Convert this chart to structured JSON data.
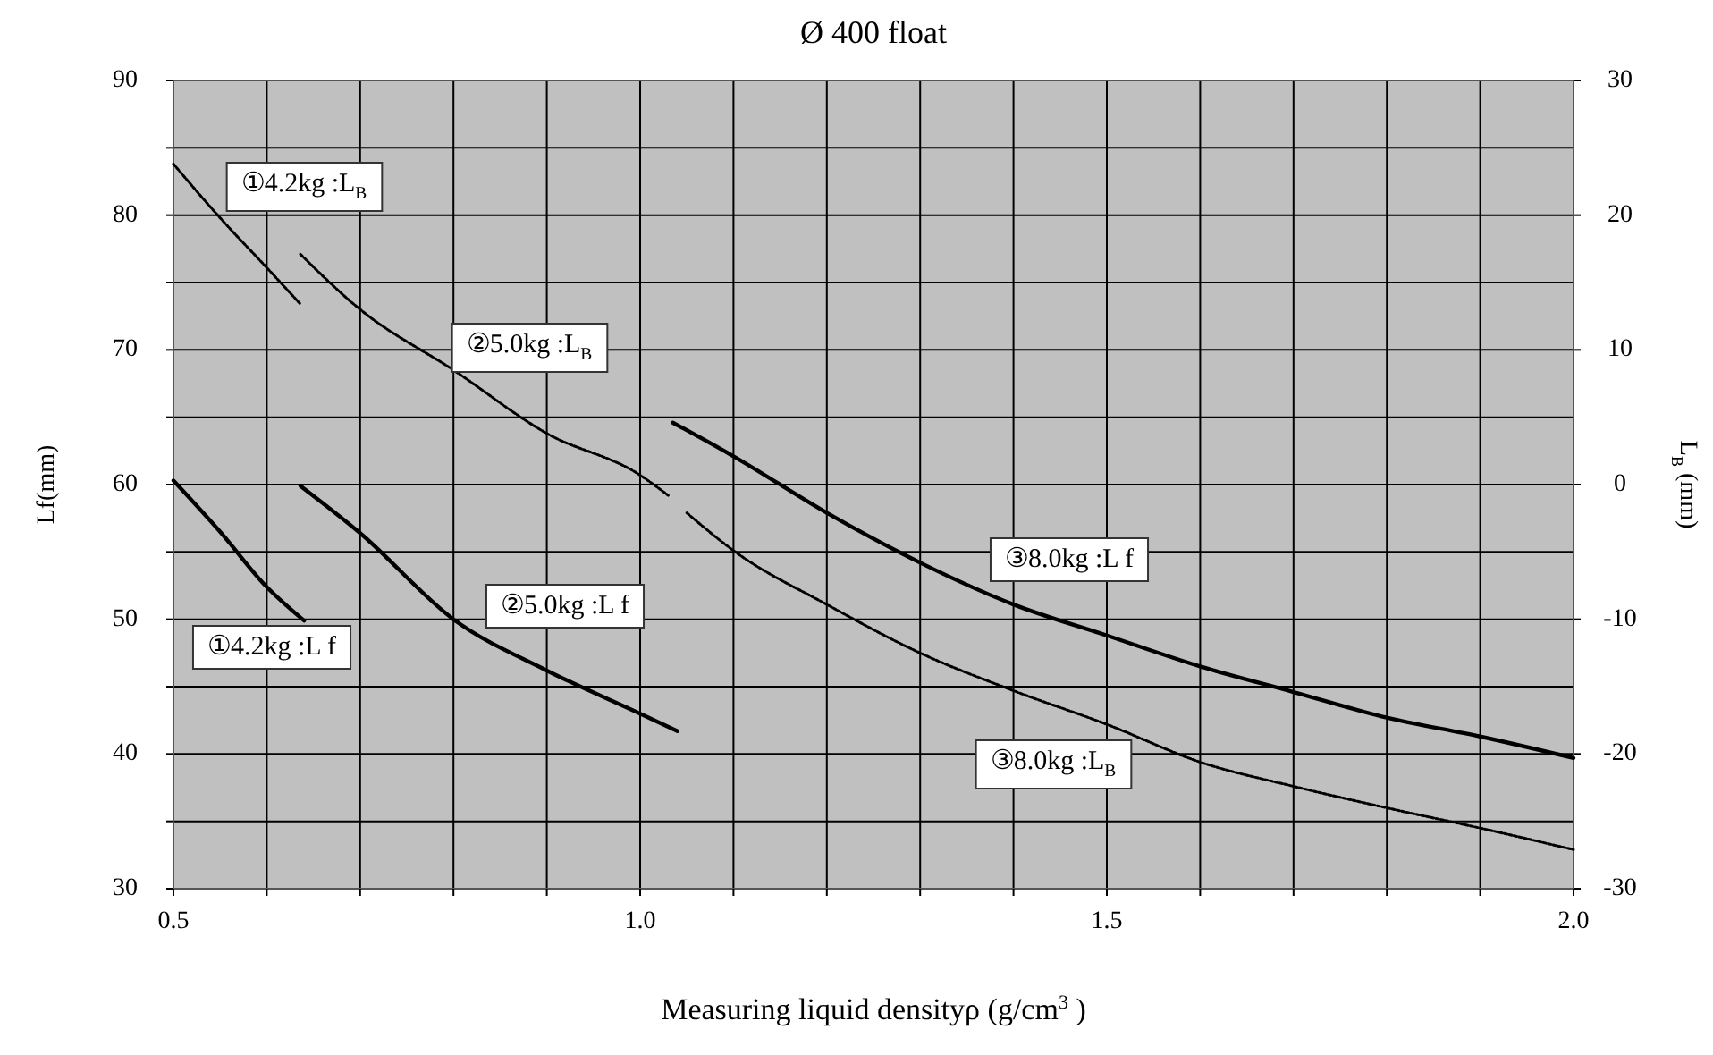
{
  "chart_data": {
    "type": "line",
    "title": "Ø 400 float",
    "xlabel": "Measuring liquid densityρ  (g/cm$^{3}$ )",
    "ylabel": "Lf(mm)",
    "y2label": "L$_{B}$ (mm)",
    "xlim": [
      0.5,
      2.0
    ],
    "xticks": [
      0.5,
      {
        "value": 0.6,
        "label": null
      },
      {
        "value": 0.7,
        "label": null
      },
      {
        "value": 0.8,
        "label": null
      },
      {
        "value": 0.9,
        "label": null
      },
      {
        "value": 1.0,
        "label": "1.0"
      },
      {
        "value": 1.1,
        "label": null
      },
      {
        "value": 1.2,
        "label": null
      },
      {
        "value": 1.3,
        "label": null
      },
      {
        "value": 1.4,
        "label": null
      },
      1.5,
      {
        "value": 1.6,
        "label": null
      },
      {
        "value": 1.7,
        "label": null
      },
      {
        "value": 1.8,
        "label": null
      },
      {
        "value": 1.9,
        "label": null
      },
      {
        "value": 2.0,
        "label": "2.0"
      }
    ],
    "ylim": [
      30,
      90
    ],
    "yticks": [
      30,
      {
        "value": 35,
        "label": null
      },
      40,
      {
        "value": 45,
        "label": null
      },
      50,
      {
        "value": 55,
        "label": null
      },
      60,
      {
        "value": 65,
        "label": null
      },
      70,
      {
        "value": 75,
        "label": null
      },
      80,
      {
        "value": 85,
        "label": null
      },
      90
    ],
    "y2lim": [
      -30,
      30
    ],
    "y2ticks": [
      -30,
      -20,
      -10,
      0,
      10,
      20,
      30
    ],
    "grid": true,
    "marker": "none",
    "series": [
      {
        "name": "①4.2kg :L f",
        "color": "#000000",
        "line_style": "solid",
        "x": [
          0.5,
          0.55,
          0.6,
          0.64
        ],
        "values": [
          60.3,
          56.5,
          52.4,
          49.9
        ]
      },
      {
        "name": "①4.2kg :L$_{B}$",
        "color": "#000000",
        "line_style": "dotted",
        "axis": "y2",
        "x": [
          0.5,
          0.55,
          0.6,
          0.636
        ],
        "values": [
          23.8,
          19.8,
          16.1,
          13.4
        ]
      },
      {
        "name": "②5.0kg :L f",
        "color": "#000000",
        "line_style": "solid",
        "x": [
          0.636,
          0.7,
          0.8,
          0.9,
          1.0,
          1.04
        ],
        "values": [
          59.9,
          56.4,
          50.0,
          46.2,
          43.0,
          41.7
        ]
      },
      {
        "name": "②5.0kg :L$_{B}$",
        "color": "#000000",
        "line_style": "dotted",
        "axis": "y2",
        "x": [
          0.636,
          0.7,
          0.8,
          0.9,
          1.0,
          1.03
        ],
        "values": [
          17.1,
          13.0,
          8.5,
          3.8,
          0.7,
          -0.8
        ]
      },
      {
        "name": "③8.0kg :L f",
        "color": "#000000",
        "line_style": "solid",
        "x": [
          1.035,
          1.1,
          1.2,
          1.3,
          1.4,
          1.5,
          1.6,
          1.7,
          1.8,
          1.9,
          2.0
        ],
        "values": [
          64.6,
          62.1,
          57.9,
          54.2,
          51.1,
          48.8,
          46.5,
          44.6,
          42.7,
          41.3,
          39.7
        ]
      },
      {
        "name": "③8.0kg :L$_{B}$",
        "color": "#000000",
        "line_style": "dotted",
        "axis": "y2",
        "x": [
          1.05,
          1.1,
          1.2,
          1.3,
          1.4,
          1.5,
          1.6,
          1.7,
          1.8,
          1.9,
          2.0
        ],
        "values": [
          -2.1,
          -4.9,
          -8.9,
          -12.5,
          -15.3,
          -17.8,
          -20.6,
          -22.4,
          -24.0,
          -25.5,
          -27.1
        ]
      }
    ]
  }
}
